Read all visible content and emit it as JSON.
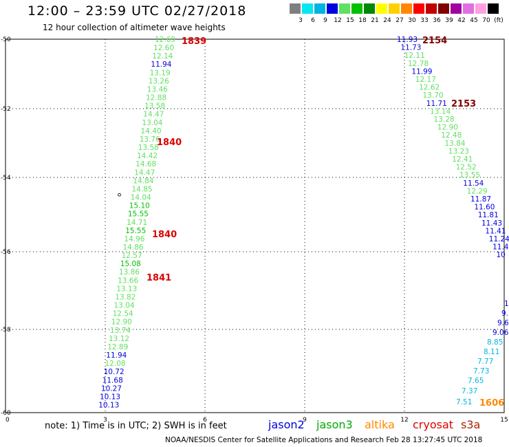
{
  "header": {
    "title": "12:00 – 23:59 UTC 02/27/2018",
    "subtitle": "12 hour collection of altimeter wave heights"
  },
  "color_scale": {
    "labels": [
      "3",
      "6",
      "9",
      "12",
      "15",
      "18",
      "21",
      "24",
      "27",
      "30",
      "33",
      "36",
      "39",
      "42",
      "45",
      "70",
      "(ft)"
    ],
    "colors": [
      "#7f7f7f",
      "#00e8f0",
      "#00b4e0",
      "#0000e0",
      "#60e060",
      "#00c000",
      "#008800",
      "#ffff00",
      "#ffd000",
      "#ff8800",
      "#ff0000",
      "#c00000",
      "#800000",
      "#a000a0",
      "#e070e0",
      "#ffa0e0",
      "#000000"
    ]
  },
  "axes": {
    "x_ticks": [
      "0",
      "3",
      "6",
      "9",
      "12",
      "15"
    ],
    "y_ticks": [
      "-50",
      "-52",
      "-54",
      "-56",
      "-58",
      "-60"
    ]
  },
  "tracks": [
    {
      "name": "track-1839-1841",
      "points": [
        {
          "v": "12.69",
          "c": "#60e060"
        },
        {
          "v": "12.60",
          "c": "#60e060"
        },
        {
          "v": "12.14",
          "c": "#60e060"
        },
        {
          "v": "11.94",
          "c": "#0000e0"
        },
        {
          "v": "13.19",
          "c": "#60e060"
        },
        {
          "v": "13.26",
          "c": "#60e060"
        },
        {
          "v": "13.46",
          "c": "#60e060"
        },
        {
          "v": "12.88",
          "c": "#60e060"
        },
        {
          "v": "13.58",
          "c": "#60e060"
        },
        {
          "v": "14.47",
          "c": "#60e060"
        },
        {
          "v": "13.04",
          "c": "#60e060"
        },
        {
          "v": "14.40",
          "c": "#60e060"
        },
        {
          "v": "13.76",
          "c": "#60e060"
        },
        {
          "v": "13.58",
          "c": "#60e060"
        },
        {
          "v": "14.42",
          "c": "#60e060"
        },
        {
          "v": "14.68",
          "c": "#60e060"
        },
        {
          "v": "14.47",
          "c": "#60e060"
        },
        {
          "v": "14.84",
          "c": "#60e060"
        },
        {
          "v": "14.85",
          "c": "#60e060"
        },
        {
          "v": "14.04",
          "c": "#60e060"
        },
        {
          "v": "15.10",
          "c": "#00c000"
        },
        {
          "v": "15.55",
          "c": "#00c000"
        },
        {
          "v": "14.71",
          "c": "#60e060"
        },
        {
          "v": "15.55",
          "c": "#00c000"
        },
        {
          "v": "14.96",
          "c": "#60e060"
        },
        {
          "v": "14.86",
          "c": "#60e060"
        },
        {
          "v": "12.57",
          "c": "#60e060"
        },
        {
          "v": "15.08",
          "c": "#00c000"
        },
        {
          "v": "13.86",
          "c": "#60e060"
        },
        {
          "v": "13.66",
          "c": "#60e060"
        },
        {
          "v": "13.13",
          "c": "#60e060"
        },
        {
          "v": "13.82",
          "c": "#60e060"
        },
        {
          "v": "13.04",
          "c": "#60e060"
        },
        {
          "v": "12.54",
          "c": "#60e060"
        },
        {
          "v": "12.90",
          "c": "#60e060"
        },
        {
          "v": "13.74",
          "c": "#60e060"
        },
        {
          "v": "13.12",
          "c": "#60e060"
        },
        {
          "v": "12.89",
          "c": "#60e060"
        },
        {
          "v": "11.94",
          "c": "#0000e0"
        },
        {
          "v": "12.08",
          "c": "#60e060"
        },
        {
          "v": "10.72",
          "c": "#0000e0"
        },
        {
          "v": "11.68",
          "c": "#0000e0"
        },
        {
          "v": "10.27",
          "c": "#0000e0"
        },
        {
          "v": "10.13",
          "c": "#0000e0"
        },
        {
          "v": "10.13",
          "c": "#0000e0"
        }
      ]
    },
    {
      "name": "track-2153-2154",
      "points": [
        {
          "v": "11.93",
          "c": "#0000e0"
        },
        {
          "v": "11.73",
          "c": "#0000e0"
        },
        {
          "v": "12.11",
          "c": "#60e060"
        },
        {
          "v": "12.78",
          "c": "#60e060"
        },
        {
          "v": "11.99",
          "c": "#0000e0"
        },
        {
          "v": "12.17",
          "c": "#60e060"
        },
        {
          "v": "12.62",
          "c": "#60e060"
        },
        {
          "v": "13.70",
          "c": "#60e060"
        },
        {
          "v": "11.71",
          "c": "#0000e0"
        },
        {
          "v": "13.14",
          "c": "#60e060"
        },
        {
          "v": "13.28",
          "c": "#60e060"
        },
        {
          "v": "12.90",
          "c": "#60e060"
        },
        {
          "v": "12.48",
          "c": "#60e060"
        },
        {
          "v": "13.84",
          "c": "#60e060"
        },
        {
          "v": "13.23",
          "c": "#60e060"
        },
        {
          "v": "12.41",
          "c": "#60e060"
        },
        {
          "v": "12.52",
          "c": "#60e060"
        },
        {
          "v": "13.55",
          "c": "#60e060"
        },
        {
          "v": "11.54",
          "c": "#0000e0"
        },
        {
          "v": "12.29",
          "c": "#60e060"
        },
        {
          "v": "11.87",
          "c": "#0000e0"
        },
        {
          "v": "11.60",
          "c": "#0000e0"
        },
        {
          "v": "11.81",
          "c": "#0000e0"
        },
        {
          "v": "11.43",
          "c": "#0000e0"
        },
        {
          "v": "11.41",
          "c": "#0000e0"
        },
        {
          "v": "11.24",
          "c": "#0000e0"
        },
        {
          "v": "11.4",
          "c": "#0000e0"
        },
        {
          "v": "10",
          "c": "#0000e0"
        }
      ]
    },
    {
      "name": "track-1606",
      "points": [
        {
          "v": "1",
          "c": "#0000e0"
        },
        {
          "v": "9.",
          "c": "#0000e0"
        },
        {
          "v": "9.6",
          "c": "#0000e0"
        },
        {
          "v": "9.06",
          "c": "#0000e0"
        },
        {
          "v": "8.85",
          "c": "#00b4e0"
        },
        {
          "v": "8.11",
          "c": "#00b4e0"
        },
        {
          "v": "7.77",
          "c": "#00b4e0"
        },
        {
          "v": "7.73",
          "c": "#00b4e0"
        },
        {
          "v": "7.65",
          "c": "#00b4e0"
        },
        {
          "v": "7.37",
          "c": "#00b4e0"
        },
        {
          "v": "7.51",
          "c": "#00b4e0"
        }
      ]
    }
  ],
  "time_labels": [
    {
      "text": "1839",
      "c": "#dd0000"
    },
    {
      "text": "1840",
      "c": "#dd0000"
    },
    {
      "text": "1840",
      "c": "#dd0000"
    },
    {
      "text": "1841",
      "c": "#dd0000"
    },
    {
      "text": "2154",
      "c": "#800000"
    },
    {
      "text": "2153",
      "c": "#800000"
    },
    {
      "text": "1606",
      "c": "#ff8800"
    }
  ],
  "marker": {
    "text": "o"
  },
  "footer": {
    "note": "note:  1) Time is in UTC;  2) SWH is in feet",
    "legend": [
      {
        "text": "jason2",
        "c": "#0000dd"
      },
      {
        "text": "jason3",
        "c": "#00aa00"
      },
      {
        "text": "altika",
        "c": "#ff8800"
      },
      {
        "text": "cryosat",
        "c": "#dd0000"
      },
      {
        "text": "s3a",
        "c": "#aa2200"
      }
    ],
    "credit": "NOAA/NESDIS Center for Satellite Applications and Research    Feb 28 13:27:45 UTC 2018"
  }
}
